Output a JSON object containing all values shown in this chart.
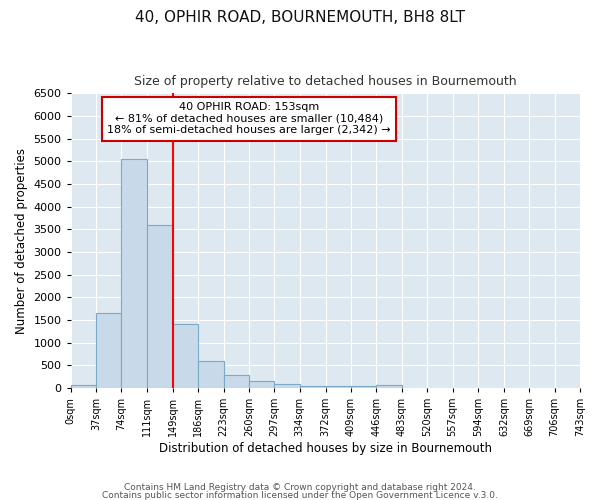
{
  "title": "40, OPHIR ROAD, BOURNEMOUTH, BH8 8LT",
  "subtitle": "Size of property relative to detached houses in Bournemouth",
  "xlabel": "Distribution of detached houses by size in Bournemouth",
  "ylabel": "Number of detached properties",
  "bin_edges": [
    0,
    37,
    74,
    111,
    149,
    186,
    223,
    260,
    297,
    334,
    372,
    409,
    446,
    483,
    520,
    557,
    594,
    632,
    669,
    706,
    743
  ],
  "bin_labels": [
    "0sqm",
    "37sqm",
    "74sqm",
    "111sqm",
    "149sqm",
    "186sqm",
    "223sqm",
    "260sqm",
    "297sqm",
    "334sqm",
    "372sqm",
    "409sqm",
    "446sqm",
    "483sqm",
    "520sqm",
    "557sqm",
    "594sqm",
    "632sqm",
    "669sqm",
    "706sqm",
    "743sqm"
  ],
  "bar_heights": [
    75,
    1650,
    5050,
    3600,
    1400,
    600,
    280,
    150,
    90,
    50,
    40,
    35,
    55,
    0,
    0,
    0,
    0,
    0,
    0,
    0
  ],
  "bar_color": "#c8daea",
  "bar_edge_color": "#7aaac8",
  "red_line_x": 149,
  "annotation_text": "40 OPHIR ROAD: 153sqm\n← 81% of detached houses are smaller (10,484)\n18% of semi-detached houses are larger (2,342) →",
  "annotation_box_color": "#ffffff",
  "annotation_border_color": "#cc0000",
  "ylim": [
    0,
    6500
  ],
  "yticks": [
    0,
    500,
    1000,
    1500,
    2000,
    2500,
    3000,
    3500,
    4000,
    4500,
    5000,
    5500,
    6000,
    6500
  ],
  "plot_bg_color": "#dde8f0",
  "fig_bg_color": "#ffffff",
  "grid_color": "#ffffff",
  "footer_line1": "Contains HM Land Registry data © Crown copyright and database right 2024.",
  "footer_line2": "Contains public sector information licensed under the Open Government Licence v.3.0."
}
